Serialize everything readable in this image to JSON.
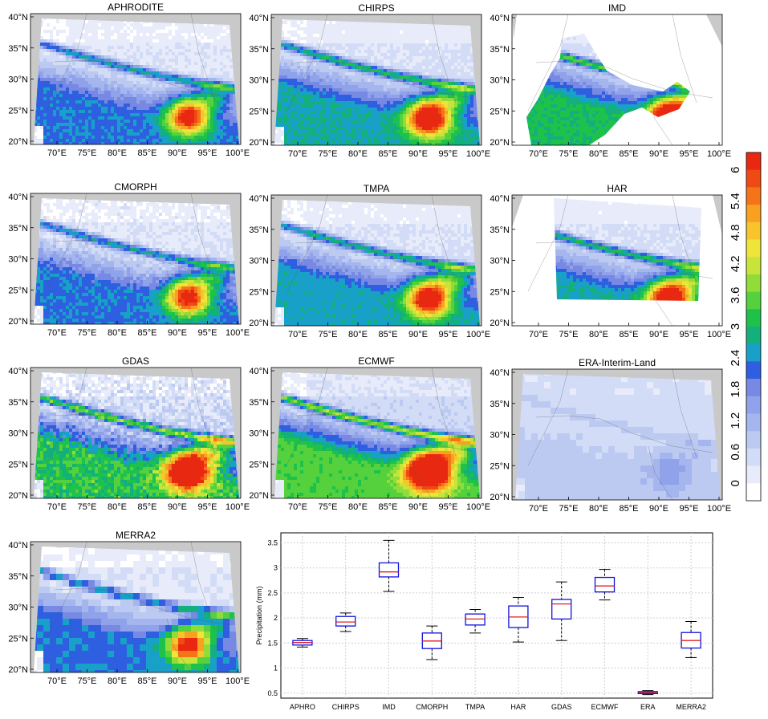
{
  "maps": [
    {
      "title": "APHRODITE",
      "domain": "grid",
      "intensity": 1.0
    },
    {
      "title": "CHIRPS",
      "domain": "grid",
      "intensity": 1.15
    },
    {
      "title": "IMD",
      "domain": "india",
      "intensity": 1.3
    },
    {
      "title": "CMORPH",
      "domain": "grid",
      "intensity": 1.0
    },
    {
      "title": "TMPA",
      "domain": "grid",
      "intensity": 1.1
    },
    {
      "title": "HAR",
      "domain": "har",
      "intensity": 1.15
    },
    {
      "title": "GDAS",
      "domain": "grid",
      "intensity": 1.35
    },
    {
      "title": "ECMWF",
      "domain": "grid",
      "intensity": 1.45
    },
    {
      "title": "ERA-Interim-Land",
      "domain": "grid",
      "intensity": 0.3
    },
    {
      "title": "MERRA2",
      "domain": "grid",
      "intensity": 1.0
    }
  ],
  "map_axes": {
    "lat_labels": [
      "40°N",
      "35°N",
      "30°N",
      "25°N",
      "20°N"
    ],
    "lon_labels": [
      "70°E",
      "75°E",
      "80°E",
      "85°E",
      "90°E",
      "95°E",
      "100°E"
    ]
  },
  "colorbar": {
    "labels": [
      "0",
      "0.6",
      "1.2",
      "1.8",
      "2.4",
      "3",
      "3.6",
      "4.2",
      "4.8",
      "5.4",
      "6"
    ],
    "colors": [
      "#ffffff",
      "#e8ecfa",
      "#d2dcf6",
      "#bccaf2",
      "#a5b6ee",
      "#8fa2ea",
      "#7789e2",
      "#2e5fe0",
      "#18a0c8",
      "#13b07e",
      "#1ec24a",
      "#54d13c",
      "#92dc3a",
      "#c8e43a",
      "#eee43a",
      "#f7c42c",
      "#f8a020",
      "#f67418",
      "#f04a14",
      "#e82810"
    ]
  },
  "chart_data": {
    "type": "box",
    "categories": [
      "APHRO",
      "CHIRPS",
      "IMD",
      "CMORPH",
      "TMPA",
      "HAR",
      "GDAS",
      "ECMWF",
      "ERA",
      "MERRA2"
    ],
    "ylabel": "Precipitation (mm)",
    "ylim": [
      0.4,
      3.7
    ],
    "yticks": [
      0.5,
      1,
      1.5,
      2,
      2.5,
      3,
      3.5
    ],
    "grid": true,
    "boxes": [
      {
        "min": 1.42,
        "q1": 1.46,
        "median": 1.51,
        "q3": 1.55,
        "max": 1.59
      },
      {
        "min": 1.73,
        "q1": 1.84,
        "median": 1.92,
        "q3": 2.03,
        "max": 2.1
      },
      {
        "min": 2.53,
        "q1": 2.82,
        "median": 2.92,
        "q3": 3.1,
        "max": 3.55
      },
      {
        "min": 1.17,
        "q1": 1.39,
        "median": 1.54,
        "q3": 1.7,
        "max": 1.84
      },
      {
        "min": 1.7,
        "q1": 1.86,
        "median": 1.98,
        "q3": 2.08,
        "max": 2.17
      },
      {
        "min": 1.52,
        "q1": 1.81,
        "median": 2.02,
        "q3": 2.24,
        "max": 2.41
      },
      {
        "min": 1.55,
        "q1": 1.98,
        "median": 2.28,
        "q3": 2.37,
        "max": 2.72
      },
      {
        "min": 2.36,
        "q1": 2.52,
        "median": 2.64,
        "q3": 2.81,
        "max": 2.97
      },
      {
        "min": 0.47,
        "q1": 0.49,
        "median": 0.51,
        "q3": 0.53,
        "max": 0.55
      },
      {
        "min": 1.21,
        "q1": 1.4,
        "median": 1.55,
        "q3": 1.71,
        "max": 1.93
      }
    ]
  }
}
